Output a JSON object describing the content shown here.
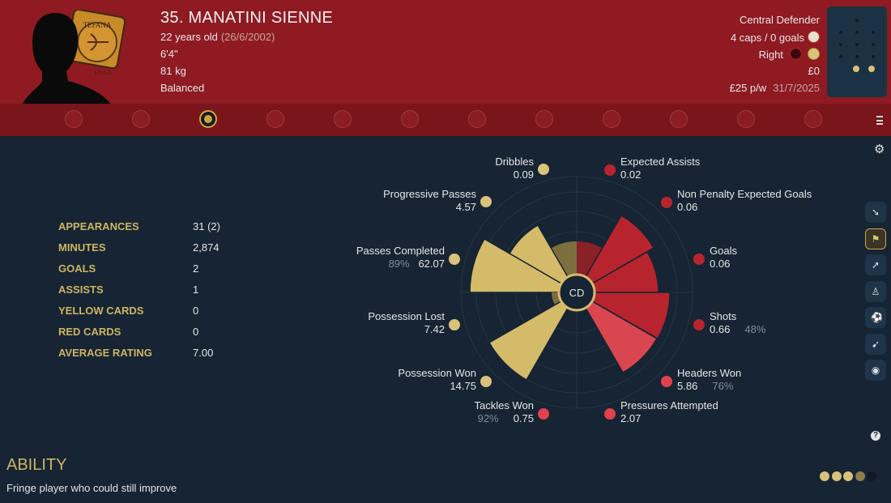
{
  "player": {
    "title": "35. MANATINI SIENNE",
    "age": "22 years old",
    "dob": "(26/6/2002)",
    "height": "6'4\"",
    "weight": "81 kg",
    "personality": "Balanced",
    "position": "Central Defender",
    "caps": "4 caps / 0 goals",
    "foot": "Right",
    "value": "£0",
    "wage": "£25 p/w",
    "contract_end": "31/7/2025"
  },
  "crest": {
    "top": "TEFANA",
    "bottom": "FAAA"
  },
  "tabs": [
    {
      "icon": "anchor-icon"
    },
    {
      "icon": "board-icon"
    },
    {
      "icon": "club-crest-icon",
      "active": true
    },
    {
      "icon": "hammer-sickle-icon"
    },
    {
      "icon": "eye-icon"
    },
    {
      "icon": "feather-icon"
    },
    {
      "icon": "helmet-icon"
    },
    {
      "icon": "sun-icon"
    },
    {
      "icon": "chess-knight-icon"
    },
    {
      "icon": "wave-icon"
    },
    {
      "icon": "target-icon"
    },
    {
      "icon": "mask-icon"
    }
  ],
  "stats": [
    {
      "label": "APPEARANCES",
      "value": "31 (2)"
    },
    {
      "label": "MINUTES",
      "value": "2,874"
    },
    {
      "label": "GOALS",
      "value": "2"
    },
    {
      "label": "ASSISTS",
      "value": "1"
    },
    {
      "label": "YELLOW CARDS",
      "value": "0"
    },
    {
      "label": "RED CARDS",
      "value": "0"
    },
    {
      "label": "AVERAGE RATING",
      "value": "7.00"
    }
  ],
  "radar": {
    "center_label": "CD",
    "metrics": [
      {
        "name": "Dribbles",
        "value": "0.09",
        "pct": "",
        "side": "left",
        "color": "#d9c27a"
      },
      {
        "name": "Progressive Passes",
        "value": "4.57",
        "pct": "",
        "side": "left",
        "color": "#d9c27a"
      },
      {
        "name": "Passes Completed",
        "value": "62.07",
        "pct": "89%",
        "side": "left",
        "color": "#d9c27a"
      },
      {
        "name": "Possession Lost",
        "value": "7.42",
        "pct": "",
        "side": "left",
        "color": "#d9c27a"
      },
      {
        "name": "Possession Won",
        "value": "14.75",
        "pct": "",
        "side": "left",
        "color": "#d9c27a"
      },
      {
        "name": "Tackles Won",
        "value": "0.75",
        "pct": "92%",
        "side": "left",
        "color": "#e0414d"
      },
      {
        "name": "Expected Assists",
        "value": "0.02",
        "pct": "",
        "side": "right",
        "color": "#b8242e"
      },
      {
        "name": "Non Penalty Expected Goals",
        "value": "0.06",
        "pct": "",
        "side": "right",
        "color": "#b8242e"
      },
      {
        "name": "Goals",
        "value": "0.06",
        "pct": "",
        "side": "right",
        "color": "#b8242e"
      },
      {
        "name": "Shots",
        "value": "0.66",
        "pct": "48%",
        "side": "right",
        "color": "#b8242e"
      },
      {
        "name": "Headers Won",
        "value": "5.86",
        "pct": "76%",
        "side": "right",
        "color": "#e0414d"
      },
      {
        "name": "Pressures Attempted",
        "value": "2.07",
        "pct": "",
        "side": "right",
        "color": "#e0414d"
      }
    ]
  },
  "side_icons": [
    {
      "icon": "sliding-tackle-icon"
    },
    {
      "icon": "defender-icon",
      "active": true
    },
    {
      "icon": "running-player-icon"
    },
    {
      "icon": "standing-player-icon"
    },
    {
      "icon": "kicking-player-icon"
    },
    {
      "icon": "striker-icon"
    },
    {
      "icon": "goalkeeper-icon"
    }
  ],
  "ability": {
    "title": "ABILITY",
    "text": "Fringe player who could still improve",
    "stars_filled": 3,
    "stars_total": 5
  },
  "colors": {
    "header": "#8f1a22",
    "tabbar": "#7a151c",
    "background": "#162433",
    "gold": "#cdb563",
    "red": "#b8242e",
    "light_red": "#e0414d"
  }
}
